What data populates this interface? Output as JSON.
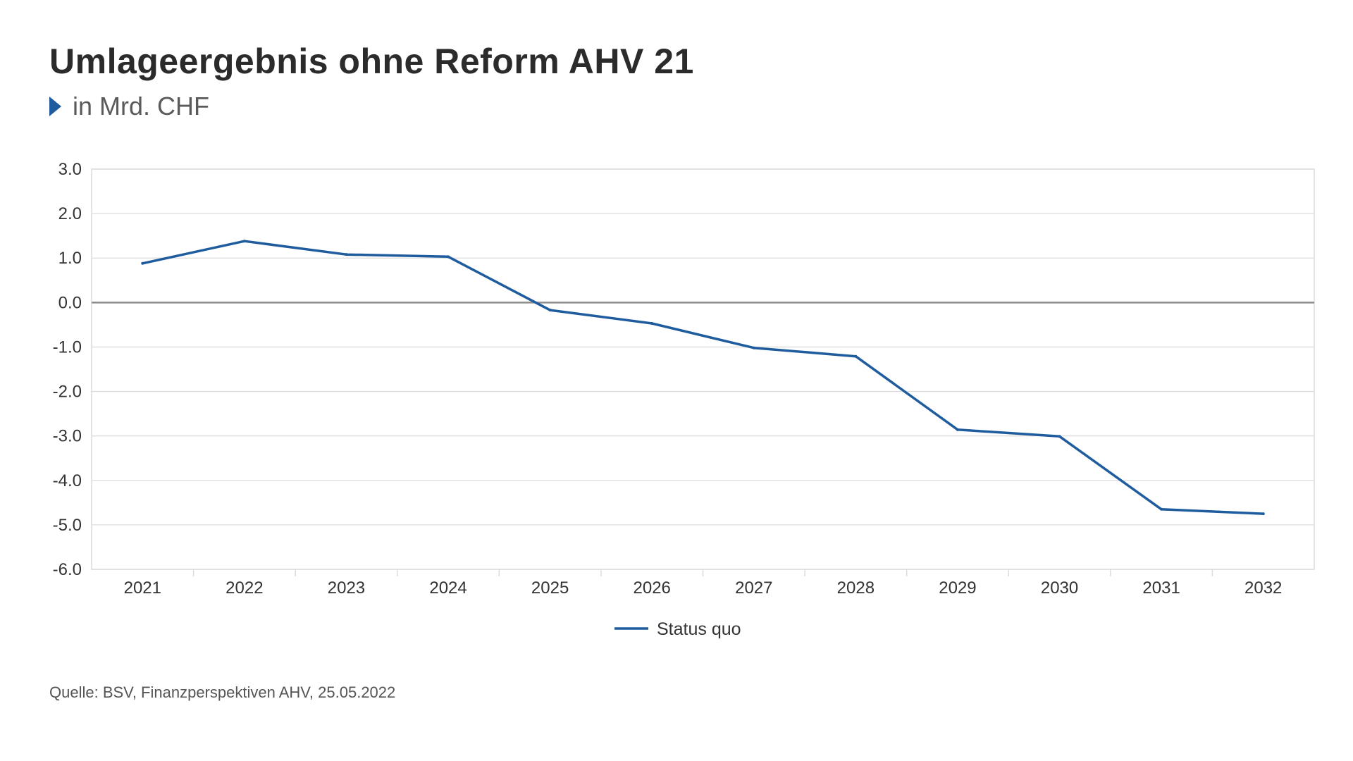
{
  "header": {
    "title": "Umlageergebnis ohne Reform AHV 21",
    "subtitle": "in Mrd. CHF"
  },
  "footer": {
    "source": "Quelle: BSV, Finanzperspektiven AHV, 25.05.2022"
  },
  "colors": {
    "accent": "#1f5c9e",
    "line": "#1f5c9e",
    "grid": "#dcdcdc",
    "zero_line": "#8c8c8c",
    "text": "#333333"
  },
  "chart_data": {
    "type": "line",
    "title": "Umlageergebnis ohne Reform AHV 21",
    "subtitle": "in Mrd. CHF",
    "xlabel": "",
    "ylabel": "",
    "categories": [
      "2021",
      "2022",
      "2023",
      "2024",
      "2025",
      "2026",
      "2027",
      "2028",
      "2029",
      "2030",
      "2031",
      "2032"
    ],
    "ylim": [
      -6.0,
      3.0
    ],
    "yticks": [
      3.0,
      2.0,
      1.0,
      0.0,
      -1.0,
      -2.0,
      -3.0,
      -4.0,
      -5.0,
      -6.0
    ],
    "ytick_labels": [
      "3.0",
      "2.0",
      "1.0",
      "0.0",
      "-1.0",
      "-2.0",
      "-3.0",
      "-4.0",
      "-5.0",
      "-6.0"
    ],
    "grid": true,
    "legend": "bottom-center",
    "series": [
      {
        "name": "Status quo",
        "values": [
          0.88,
          1.38,
          1.08,
          1.03,
          -0.17,
          -0.47,
          -1.02,
          -1.21,
          -2.86,
          -3.01,
          -4.65,
          -4.75
        ]
      }
    ]
  }
}
